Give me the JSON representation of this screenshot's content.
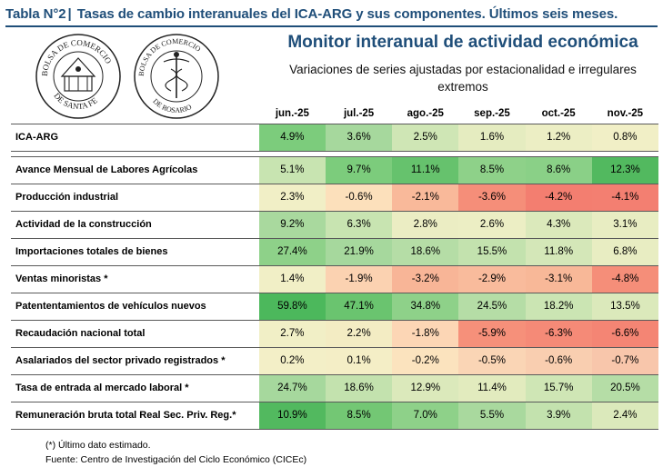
{
  "header": {
    "tag": "Tabla N°2",
    "separator": "|",
    "title": "Tasas de cambio interanuales del ICA-ARG y sus componentes. Últimos seis meses."
  },
  "logos": {
    "seal1_text": "BOLSA DE COMERCIO DE SANTA FE",
    "seal2_text": "BOLSA DE COMERCIO DE ROSARIO"
  },
  "monitor": {
    "title": "Monitor interanual de actividad económica",
    "subtitle_line1": "Variaciones de series ajustadas por estacionalidad e irregulares",
    "subtitle_line2": "extremos"
  },
  "table": {
    "columns": [
      "jun.-25",
      "jul.-25",
      "ago.-25",
      "sep.-25",
      "oct.-25",
      "nov.-25"
    ],
    "rows": [
      {
        "label": "ICA-ARG",
        "values": [
          "4.9%",
          "3.6%",
          "2.5%",
          "1.6%",
          "1.2%",
          "0.8%"
        ],
        "colors": [
          "#7ccc7c",
          "#a6d89d",
          "#cfe6b5",
          "#e5ecc0",
          "#eceec4",
          "#f1efc6"
        ]
      },
      {
        "label": "Avance Mensual de Labores Agrícolas",
        "values": [
          "5.1%",
          "9.7%",
          "11.1%",
          "8.5%",
          "8.6%",
          "12.3%"
        ],
        "colors": [
          "#c8e4b1",
          "#7ccc7c",
          "#66c26d",
          "#8ed189",
          "#8ad087",
          "#52b95f"
        ]
      },
      {
        "label": "Producción industrial",
        "values": [
          "2.3%",
          "-0.6%",
          "-2.1%",
          "-3.6%",
          "-4.2%",
          "-4.1%"
        ],
        "colors": [
          "#f1efc6",
          "#fce0bb",
          "#f9b99a",
          "#f58e79",
          "#f37e70",
          "#f37f71"
        ]
      },
      {
        "label": "Actividad de la construcción",
        "values": [
          "9.2%",
          "6.3%",
          "2.8%",
          "2.6%",
          "4.3%",
          "3.1%"
        ],
        "colors": [
          "#a9d99e",
          "#c8e4b1",
          "#ebedc3",
          "#eceec4",
          "#dbe9bb",
          "#e8edc2"
        ]
      },
      {
        "label": "Importaciones totales de bienes",
        "values": [
          "27.4%",
          "21.9%",
          "18.6%",
          "15.5%",
          "11.8%",
          "6.8%"
        ],
        "colors": [
          "#8ed189",
          "#a6d89d",
          "#b5ddA6",
          "#c3e2ae",
          "#d4e7b8",
          "#e8edc2"
        ]
      },
      {
        "label": "Ventas minoristas *",
        "values": [
          "1.4%",
          "-1.9%",
          "-3.2%",
          "-2.9%",
          "-3.1%",
          "-4.8%"
        ],
        "colors": [
          "#f1efc6",
          "#fbd2b1",
          "#f8b597",
          "#f9bb9c",
          "#f8b898",
          "#f58e79"
        ]
      },
      {
        "label": "Patententamientos de vehículos nuevos",
        "values": [
          "59.8%",
          "47.1%",
          "34.8%",
          "24.5%",
          "18.2%",
          "13.5%"
        ],
        "colors": [
          "#4cb85c",
          "#6ac46f",
          "#8ed189",
          "#b5dda6",
          "#cbe5b3",
          "#dbe9bb"
        ]
      },
      {
        "label": "Recaudación nacional total",
        "values": [
          "2.7%",
          "2.2%",
          "-1.8%",
          "-5.9%",
          "-6.3%",
          "-6.6%"
        ],
        "colors": [
          "#f1efc6",
          "#f3ecc3",
          "#fcd6b5",
          "#f6907a",
          "#f58a77",
          "#f48574"
        ]
      },
      {
        "label": "Asalariados del sector privado registrados *",
        "values": [
          "0.2%",
          "0.1%",
          "-0.2%",
          "-0.5%",
          "-0.6%",
          "-0.7%"
        ],
        "colors": [
          "#f3efc7",
          "#f4eec6",
          "#fbe3be",
          "#fad5b5",
          "#f9ceb0",
          "#f8c6ab"
        ]
      },
      {
        "label": "Tasa de entrada al mercado laboral *",
        "values": [
          "24.7%",
          "18.6%",
          "12.9%",
          "11.4%",
          "15.7%",
          "20.5%"
        ],
        "colors": [
          "#a6d89d",
          "#c3e2ae",
          "#dbe9bb",
          "#e2ebbe",
          "#cfe6b5",
          "#b5dda6"
        ]
      },
      {
        "label": "Remuneración bruta total Real Sec. Priv. Reg.*",
        "values": [
          "10.9%",
          "8.5%",
          "7.0%",
          "5.5%",
          "3.9%",
          "2.4%"
        ],
        "colors": [
          "#52b95f",
          "#73c774",
          "#8ed189",
          "#a9d99e",
          "#c3e2ae",
          "#dbe9bb"
        ]
      }
    ]
  },
  "footnotes": {
    "estimated": "(*) Último dato estimado.",
    "source": "Fuente: Centro de Investigación del Ciclo Económico (CICEc)"
  }
}
